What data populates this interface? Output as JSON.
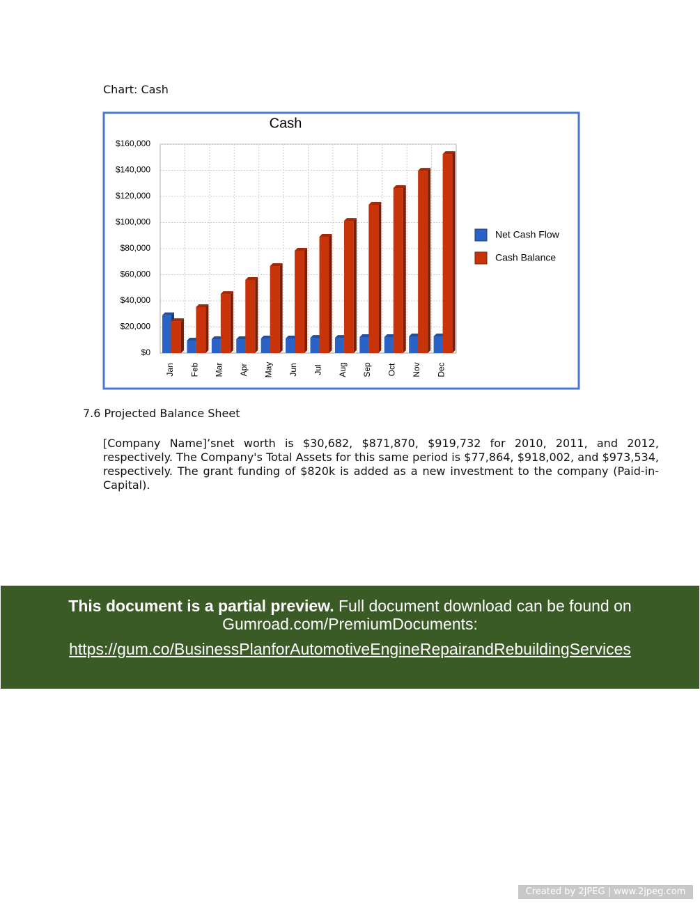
{
  "document": {
    "chart_caption": "Chart: Cash",
    "section_heading": "7.6 Projected Balance Sheet",
    "paragraph": "[Company Name]’snet worth is $30,682, $871,870, $919,732 for 2010, 2011, and 2012, respectively. The Company's Total Assets for this same period is $77,864, $918,002, and $973,534, respectively. The grant funding of $820k is added as a new investment to the company (Paid-in-Capital)."
  },
  "banner": {
    "bold": "This document is a partial preview.",
    "text": "Full document download can be found on Gumroad.com/PremiumDocuments:",
    "link": "https://gum.co/BusinessPlanforAutomotiveEngineRepairandRebuildingServices"
  },
  "footer": "Created by 2JPEG | www.2jpeg.com",
  "chart_data": {
    "type": "bar",
    "title": "Cash",
    "categories": [
      "Jan",
      "Feb",
      "Mar",
      "Apr",
      "May",
      "Jun",
      "Jul",
      "Aug",
      "Sep",
      "Oct",
      "Nov",
      "Dec"
    ],
    "series": [
      {
        "name": "Net Cash Flow",
        "color": "#2a62c6",
        "values": [
          29000,
          9600,
          10700,
          10700,
          11200,
          11200,
          11700,
          11700,
          12300,
          12300,
          12800,
          12800
        ]
      },
      {
        "name": "Cash Balance",
        "color": "#c8330a",
        "values": [
          24500,
          35200,
          45300,
          56000,
          66700,
          78400,
          89100,
          101300,
          113600,
          126400,
          139700,
          152500
        ]
      }
    ],
    "ylim": [
      0,
      160000
    ],
    "yticks": [
      {
        "value": 0,
        "label": "$0"
      },
      {
        "value": 20000,
        "label": "$20,000"
      },
      {
        "value": 40000,
        "label": "$40,000"
      },
      {
        "value": 60000,
        "label": "$60,000"
      },
      {
        "value": 80000,
        "label": "$80,000"
      },
      {
        "value": 100000,
        "label": "$100,000"
      },
      {
        "value": 120000,
        "label": "$120,000"
      },
      {
        "value": 140000,
        "label": "$140,000"
      },
      {
        "value": 160000,
        "label": "$160,000"
      }
    ],
    "grid": true,
    "legend": "right"
  }
}
